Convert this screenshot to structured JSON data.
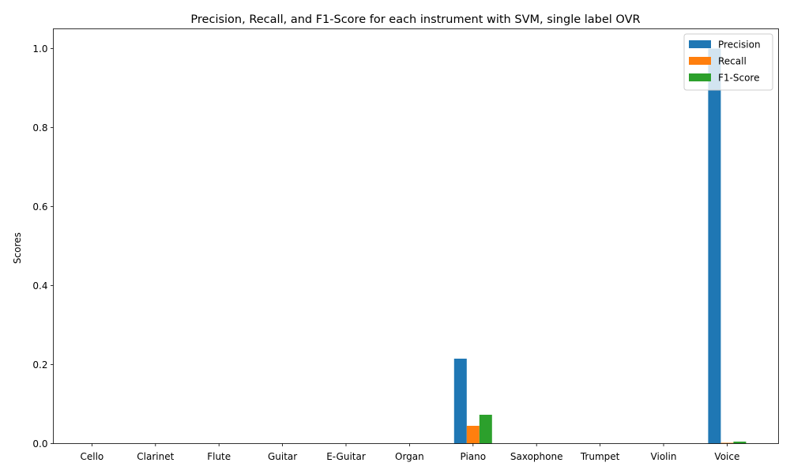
{
  "chart_data": {
    "type": "bar",
    "title": "Precision, Recall, and F1-Score for each instrument with SVM, single label OVR",
    "xlabel": "",
    "ylabel": "Scores",
    "ylim": [
      0,
      1.05
    ],
    "yticks": [
      0.0,
      0.2,
      0.4,
      0.6,
      0.8,
      1.0
    ],
    "grid": false,
    "legend_position": "top-right",
    "categories": [
      "Cello",
      "Clarinet",
      "Flute",
      "Guitar",
      "E-Guitar",
      "Organ",
      "Piano",
      "Saxophone",
      "Trumpet",
      "Violin",
      "Voice"
    ],
    "series": [
      {
        "name": "Precision",
        "color": "#1f77b4",
        "values": [
          0,
          0,
          0,
          0,
          0,
          0,
          0.215,
          0,
          0,
          0,
          1.0
        ]
      },
      {
        "name": "Recall",
        "color": "#ff7f0e",
        "values": [
          0,
          0,
          0,
          0,
          0,
          0,
          0.045,
          0,
          0,
          0,
          0.002
        ]
      },
      {
        "name": "F1-Score",
        "color": "#2ca02c",
        "values": [
          0,
          0,
          0,
          0,
          0,
          0,
          0.073,
          0,
          0,
          0,
          0.005
        ]
      }
    ]
  }
}
